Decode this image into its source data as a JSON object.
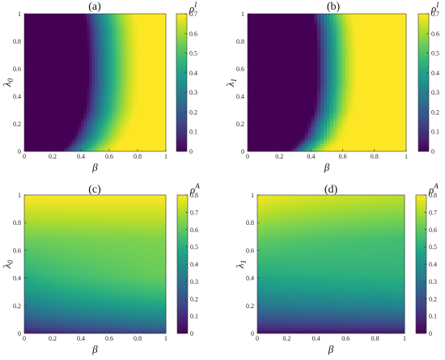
{
  "chart_data": [
    {
      "type": "heatmap",
      "title": "(a)",
      "xlabel": "β",
      "ylabel": "λ0",
      "ylabel_base": "λ",
      "ylabel_sub": "0",
      "colorbar_label": "ρI",
      "colorbar_label_base": "ρ",
      "colorbar_label_sup": "I",
      "xlim": [
        0,
        1
      ],
      "ylim": [
        0,
        1
      ],
      "zlim": [
        0,
        0.7
      ],
      "x_ticks": [
        "0",
        "0.2",
        "0.4",
        "0.6",
        "0.8",
        "1"
      ],
      "y_ticks": [
        "0",
        "0.2",
        "0.4",
        "0.6",
        "0.8",
        "1"
      ],
      "colorbar_ticks": [
        "0",
        "0.1",
        "0.2",
        "0.3",
        "0.4",
        "0.5",
        "0.6",
        "0.7"
      ],
      "field": "threshold",
      "threshold_curve": {
        "lambda": [
          0,
          0.1,
          0.3,
          0.5,
          0.7,
          0.9,
          1.0
        ],
        "beta": [
          0.31,
          0.4,
          0.48,
          0.5,
          0.5,
          0.49,
          0.47
        ]
      },
      "growth_width": 0.38,
      "colormap": "viridis"
    },
    {
      "type": "heatmap",
      "title": "(b)",
      "xlabel": "β",
      "ylabel": "λ1",
      "ylabel_base": "λ",
      "ylabel_sub": "1",
      "colorbar_label": "ρI",
      "colorbar_label_base": "ρ",
      "colorbar_label_sup": "I",
      "xlim": [
        0,
        1
      ],
      "ylim": [
        0,
        1
      ],
      "zlim": [
        0,
        0.7
      ],
      "x_ticks": [
        "0",
        "0.2",
        "0.4",
        "0.6",
        "0.8",
        "1"
      ],
      "y_ticks": [
        "0",
        "0.2",
        "0.4",
        "0.6",
        "0.8",
        "1"
      ],
      "colorbar_ticks": [
        "0",
        "0.1",
        "0.2",
        "0.3",
        "0.4",
        "0.5",
        "0.6",
        "0.7"
      ],
      "field": "threshold",
      "threshold_curve": {
        "lambda": [
          0,
          0.1,
          0.3,
          0.5,
          0.7,
          0.9,
          1.0
        ],
        "beta": [
          0.31,
          0.4,
          0.47,
          0.49,
          0.49,
          0.48,
          0.46
        ]
      },
      "growth_width": 0.26,
      "colormap": "viridis"
    },
    {
      "type": "heatmap",
      "title": "(c)",
      "xlabel": "β",
      "ylabel": "λ0",
      "ylabel_base": "λ",
      "ylabel_sub": "0",
      "colorbar_label": "ρA",
      "colorbar_label_base": "ρ",
      "colorbar_label_sup": "A",
      "xlim": [
        0,
        1
      ],
      "ylim": [
        0,
        1
      ],
      "zlim": [
        0,
        0.8
      ],
      "x_ticks": [
        "0",
        "0.2",
        "0.4",
        "0.6",
        "0.8",
        "1"
      ],
      "y_ticks": [
        "0",
        "0.2",
        "0.4",
        "0.6",
        "0.8",
        "1"
      ],
      "colorbar_ticks": [
        "0",
        "0.1",
        "0.2",
        "0.3",
        "0.4",
        "0.5",
        "0.6",
        "0.7",
        "0.8"
      ],
      "field": "awareness",
      "values_at_corners": {
        "beta0_lambda0": 0.02,
        "beta0_lambda1": 0.8,
        "beta1_lambda0": 0.15,
        "beta1_lambda1": 0.8
      },
      "colormap": "viridis"
    },
    {
      "type": "heatmap",
      "title": "(d)",
      "xlabel": "β",
      "ylabel": "λ1",
      "ylabel_base": "λ",
      "ylabel_sub": "1",
      "colorbar_label": "ρA",
      "colorbar_label_base": "ρ",
      "colorbar_label_sup": "A",
      "xlim": [
        0,
        1
      ],
      "ylim": [
        0,
        1
      ],
      "zlim": [
        0,
        0.8
      ],
      "x_ticks": [
        "0",
        "0.2",
        "0.4",
        "0.6",
        "0.8",
        "1"
      ],
      "y_ticks": [
        "0",
        "0.2",
        "0.4",
        "0.6",
        "0.8",
        "1"
      ],
      "colorbar_ticks": [
        "0",
        "0.1",
        "0.2",
        "0.3",
        "0.4",
        "0.5",
        "0.6",
        "0.7",
        "0.8"
      ],
      "field": "awareness",
      "values_at_corners": {
        "beta0_lambda0": 0.0,
        "beta0_lambda1": 0.8,
        "beta1_lambda0": 0.02,
        "beta1_lambda1": 0.72
      },
      "colormap": "viridis"
    }
  ]
}
